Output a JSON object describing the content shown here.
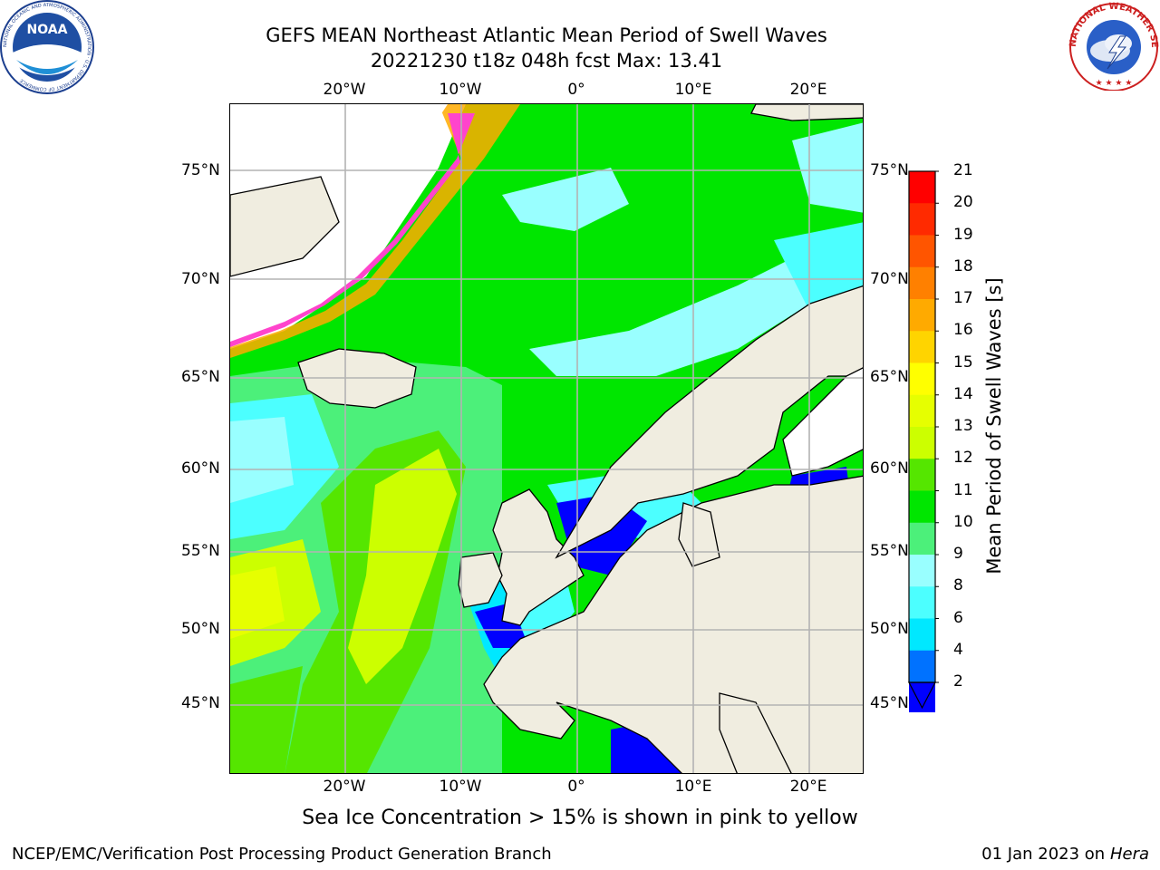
{
  "title": {
    "line1": "GEFS MEAN Northeast Atlantic Mean Period of Swell Waves",
    "line2": "20221230 t18z 048h fcst   Max: 13.41"
  },
  "axes": {
    "lon_labels": [
      "20°W",
      "10°W",
      "0°",
      "10°E",
      "20°E"
    ],
    "lat_labels": [
      "75°N",
      "70°N",
      "65°N",
      "60°N",
      "55°N",
      "50°N",
      "45°N"
    ]
  },
  "colorbar": {
    "label": "Mean Period of Swell Waves [s]",
    "ticks": [
      "21",
      "20",
      "19",
      "18",
      "17",
      "16",
      "15",
      "14",
      "13",
      "12",
      "11",
      "10",
      "9",
      "8",
      "6",
      "4",
      "2"
    ],
    "colors": [
      "#ff0000",
      "#ff2a00",
      "#ff5500",
      "#ff8000",
      "#ffaa00",
      "#ffd400",
      "#ffff00",
      "#e6ff00",
      "#ccff00",
      "#55e600",
      "#00e600",
      "#4cf07a",
      "#99ffff",
      "#4cffff",
      "#00e8ff",
      "#0072ff",
      "#0000ff"
    ]
  },
  "note": "Sea Ice Concentration > 15% is shown in pink to yellow",
  "footer": {
    "left": "NCEP/EMC/Verification Post Processing Product Generation Branch",
    "date": "01 Jan 2023 on ",
    "host": "Hera"
  },
  "logos": {
    "left_text": "NOAA",
    "left_ring": "NATIONAL OCEANIC AND ATMOSPHERIC ADMINISTRATION · U.S. DEPARTMENT OF COMMERCE",
    "right_ring": "NATIONAL WEATHER SERVICE"
  },
  "chart_data": {
    "type": "heatmap",
    "title": "GEFS MEAN Northeast Atlantic Mean Period of Swell Waves",
    "subtitle": "20221230 t18z 048h fcst   Max: 13.41",
    "colorbar_label": "Mean Period of Swell Waves [s]",
    "levels": [
      2,
      4,
      6,
      8,
      9,
      10,
      11,
      12,
      13,
      14,
      15,
      16,
      17,
      18,
      19,
      20,
      21
    ],
    "max": 13.41,
    "lon_range": [
      -30,
      25
    ],
    "lat_range": [
      41,
      78
    ],
    "grid": true
  }
}
